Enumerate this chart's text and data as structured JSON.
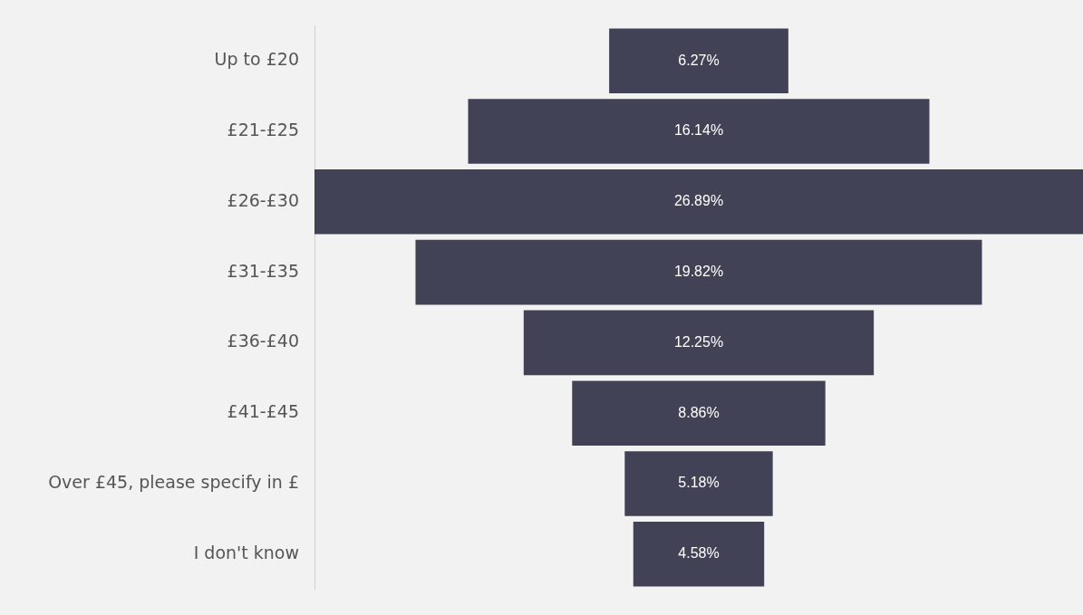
{
  "chart_data": {
    "type": "other",
    "categories": [
      "Up to £20",
      "£21-£25",
      "£26-£30",
      "£31-£35",
      "£36-£40",
      "£41-£45",
      "Over £45, please specify in £",
      "I don't know"
    ],
    "values": [
      6.27,
      16.14,
      26.89,
      19.82,
      12.25,
      8.86,
      5.18,
      4.58
    ],
    "value_labels": [
      "6.27%",
      "16.14%",
      "26.89%",
      "19.82%",
      "12.25%",
      "8.86%",
      "5.18%",
      "4.58%"
    ],
    "color": "#424257"
  }
}
